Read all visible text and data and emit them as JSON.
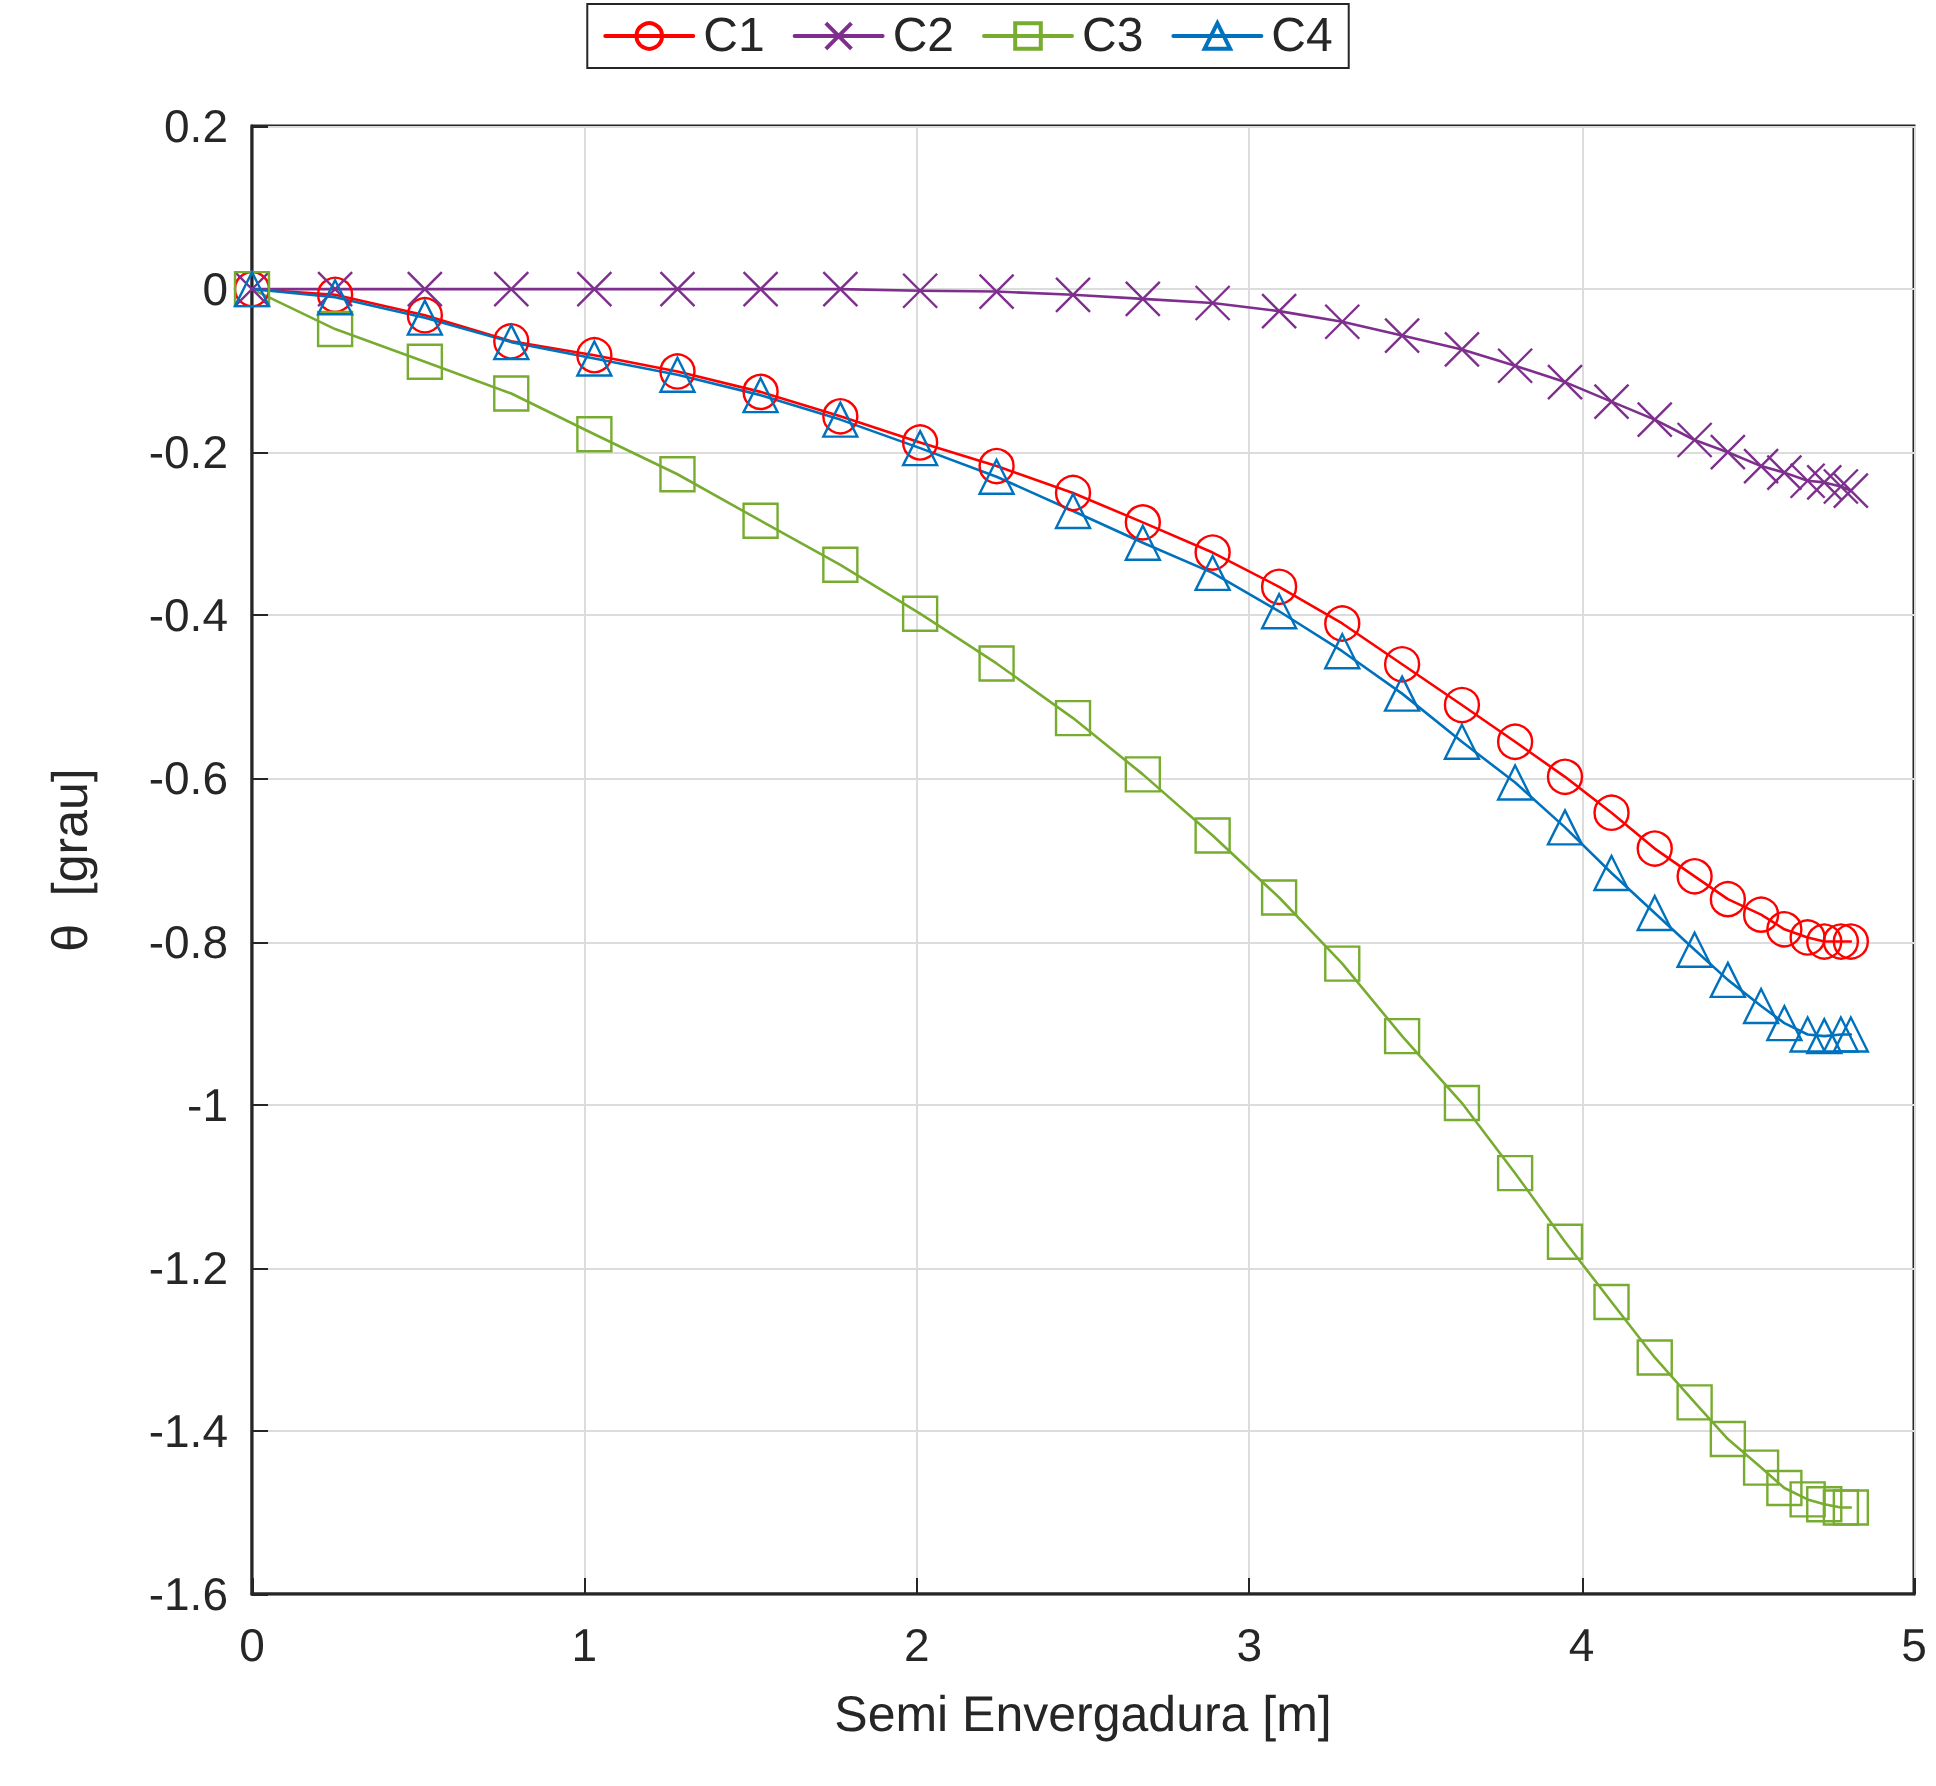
{
  "chart_data": {
    "type": "line",
    "xlabel": "Semi Envergadura [m]",
    "ylabel": "θ  [grau]",
    "x": [
      0,
      0.25,
      0.52,
      0.78,
      1.03,
      1.28,
      1.53,
      1.77,
      2.01,
      2.24,
      2.47,
      2.68,
      2.89,
      3.09,
      3.28,
      3.46,
      3.64,
      3.8,
      3.95,
      4.09,
      4.22,
      4.34,
      4.44,
      4.54,
      4.61,
      4.68,
      4.73,
      4.78,
      4.81
    ],
    "series": [
      {
        "name": "C1",
        "color": "#ff0000",
        "marker": "circle",
        "values": [
          0,
          -0.007,
          -0.032,
          -0.064,
          -0.081,
          -0.101,
          -0.126,
          -0.156,
          -0.188,
          -0.217,
          -0.25,
          -0.286,
          -0.323,
          -0.365,
          -0.41,
          -0.46,
          -0.51,
          -0.555,
          -0.598,
          -0.642,
          -0.686,
          -0.72,
          -0.748,
          -0.767,
          -0.785,
          -0.795,
          -0.8,
          -0.8,
          -0.8
        ]
      },
      {
        "name": "C2",
        "color": "#7e2f8e",
        "marker": "cross",
        "values": [
          0,
          0,
          0,
          0,
          0,
          0,
          0,
          0,
          -0.002,
          -0.003,
          -0.007,
          -0.012,
          -0.017,
          -0.027,
          -0.04,
          -0.057,
          -0.074,
          -0.094,
          -0.114,
          -0.138,
          -0.16,
          -0.185,
          -0.2,
          -0.217,
          -0.225,
          -0.235,
          -0.237,
          -0.242,
          -0.247
        ]
      },
      {
        "name": "C3",
        "color": "#77ac30",
        "marker": "square",
        "values": [
          0,
          -0.049,
          -0.089,
          -0.128,
          -0.178,
          -0.227,
          -0.284,
          -0.338,
          -0.398,
          -0.459,
          -0.526,
          -0.595,
          -0.67,
          -0.746,
          -0.827,
          -0.916,
          -0.998,
          -1.084,
          -1.168,
          -1.242,
          -1.31,
          -1.365,
          -1.41,
          -1.445,
          -1.47,
          -1.484,
          -1.49,
          -1.494,
          -1.494
        ]
      },
      {
        "name": "C4",
        "color": "#0072bd",
        "marker": "triangle",
        "values": [
          0,
          -0.01,
          -0.035,
          -0.065,
          -0.085,
          -0.105,
          -0.13,
          -0.16,
          -0.195,
          -0.23,
          -0.272,
          -0.311,
          -0.348,
          -0.395,
          -0.444,
          -0.496,
          -0.555,
          -0.605,
          -0.66,
          -0.716,
          -0.765,
          -0.81,
          -0.847,
          -0.879,
          -0.9,
          -0.914,
          -0.916,
          -0.914,
          -0.914
        ]
      }
    ],
    "xlim": [
      0,
      5
    ],
    "xticks": [
      0,
      1,
      2,
      3,
      4,
      5
    ],
    "ylim": [
      -1.6,
      0.2
    ],
    "yticks": [
      -1.6,
      -1.4,
      -1.2,
      -1,
      -0.8,
      -0.6,
      -0.4,
      -0.2,
      0,
      0.2
    ],
    "grid": true,
    "legend": "top",
    "line_style": "solid"
  }
}
